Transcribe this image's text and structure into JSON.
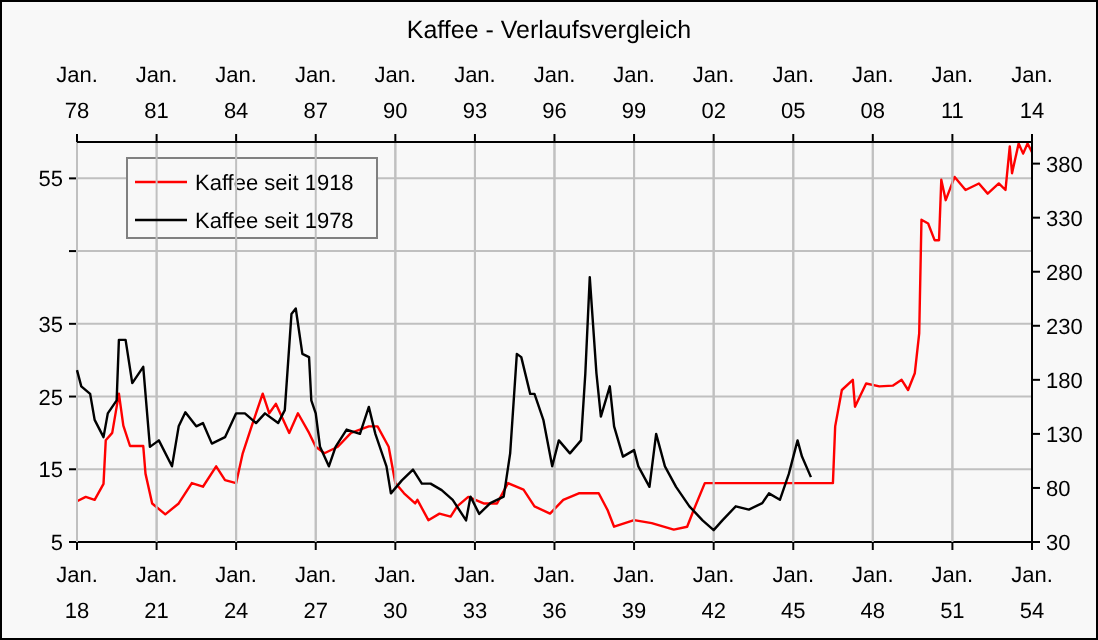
{
  "chart_data": [
    {
      "type": "line",
      "title": "Kaffee - Verlaufsvergleich",
      "xlim": [
        "1918-01",
        "1954-01"
      ],
      "xticks": [
        {
          "value": "1918-01",
          "label": "Jan. 18"
        },
        {
          "value": "1921-01",
          "label": "Jan. 21"
        },
        {
          "value": "1924-01",
          "label": "Jan. 24"
        },
        {
          "value": "1927-01",
          "label": "Jan. 27"
        },
        {
          "value": "1930-01",
          "label": "Jan. 30"
        },
        {
          "value": "1933-01",
          "label": "Jan. 33"
        },
        {
          "value": "1936-01",
          "label": "Jan. 36"
        },
        {
          "value": "1939-01",
          "label": "Jan. 39"
        },
        {
          "value": "1942-01",
          "label": "Jan. 42"
        },
        {
          "value": "1945-01",
          "label": "Jan. 45"
        },
        {
          "value": "1948-01",
          "label": "Jan. 48"
        },
        {
          "value": "1951-01",
          "label": "Jan. 51"
        },
        {
          "value": "1954-01",
          "label": "Jan. 54"
        }
      ],
      "ylim": [
        5,
        60
      ],
      "yticks": [
        5,
        15,
        25,
        35,
        {
          "value": 45,
          "label": null
        },
        55
      ],
      "grid": true,
      "legend": "top left",
      "series": [
        {
          "name": "Kaffee seit 1918",
          "color": "#ff0000",
          "x": [
            "1918-01",
            "1918-05",
            "1918-09",
            "1919-01",
            "1919-02",
            "1919-05",
            "1919-08",
            "1919-10",
            "1920-01",
            "1920-07",
            "1920-08",
            "1920-11",
            "1921-05",
            "1921-11",
            "1922-05",
            "1922-10",
            "1923-04",
            "1923-08",
            "1924-01",
            "1924-04",
            "1924-08",
            "1925-01",
            "1925-04",
            "1925-07",
            "1926-01",
            "1926-05",
            "1926-10",
            "1927-01",
            "1927-05",
            "1927-11",
            "1928-05",
            "1929-01",
            "1929-05",
            "1929-10",
            "1930-01",
            "1930-05",
            "1930-10",
            "1930-11",
            "1931-04",
            "1931-09",
            "1932-02",
            "1932-05",
            "1932-10",
            "1933-05",
            "1933-11",
            "1934-04",
            "1934-11",
            "1935-04",
            "1935-11",
            "1936-05",
            "1936-12",
            "1937-09",
            "1938-01",
            "1938-04",
            "1939-01",
            "1939-09",
            "1940-07",
            "1941-01",
            "1941-04",
            "1941-09",
            "1946-07",
            "1946-08",
            "1946-11",
            "1947-04",
            "1947-05",
            "1947-10",
            "1948-04",
            "1948-10",
            "1949-02",
            "1949-05",
            "1949-08",
            "1949-10",
            "1949-11",
            "1950-02",
            "1950-05",
            "1950-07",
            "1950-08",
            "1950-10",
            "1951-02",
            "1951-07",
            "1952-01",
            "1952-05",
            "1952-10",
            "1953-01",
            "1953-03",
            "1953-04",
            "1953-07",
            "1953-09",
            "1953-11",
            "1954-01"
          ],
          "values": [
            10.6,
            11.2,
            10.8,
            13,
            19,
            20,
            25.4,
            21,
            18.2,
            18.2,
            14.4,
            10.3,
            8.8,
            10.3,
            13.1,
            12.6,
            15.4,
            13.5,
            13.1,
            17.2,
            20.9,
            25.4,
            22.7,
            24,
            20,
            22.7,
            20,
            18.1,
            17.2,
            18.1,
            20,
            20.9,
            20.9,
            18.1,
            13.1,
            11.7,
            10.3,
            10.8,
            8,
            8.9,
            8.5,
            9.9,
            11.2,
            10.3,
            10.3,
            13.1,
            12.2,
            9.9,
            8.9,
            10.8,
            11.7,
            11.7,
            9.4,
            7.1,
            8,
            7.6,
            6.7,
            7.1,
            9.4,
            13.1,
            13.1,
            20.9,
            25.9,
            27.3,
            23.6,
            26.8,
            26.4,
            26.5,
            27.3,
            25.9,
            28.2,
            33.7,
            49.3,
            48.8,
            46.5,
            46.5,
            54.8,
            52,
            55.2,
            53.4,
            54.3,
            52.9,
            54.3,
            53.4,
            59.4,
            55.7,
            59.8,
            58.4,
            59.8,
            58.6
          ]
        }
      ]
    },
    {
      "type": "line",
      "xlim": [
        "1978-01",
        "2014-01"
      ],
      "xticks": [
        {
          "value": "1978-01",
          "label": "Jan. 78"
        },
        {
          "value": "1981-01",
          "label": "Jan. 81"
        },
        {
          "value": "1984-01",
          "label": "Jan. 84"
        },
        {
          "value": "1987-01",
          "label": "Jan. 87"
        },
        {
          "value": "1990-01",
          "label": "Jan. 90"
        },
        {
          "value": "1993-01",
          "label": "Jan. 93"
        },
        {
          "value": "1996-01",
          "label": "Jan. 96"
        },
        {
          "value": "1999-01",
          "label": "Jan. 99"
        },
        {
          "value": "2002-01",
          "label": "Jan. 02"
        },
        {
          "value": "2005-01",
          "label": "Jan. 05"
        },
        {
          "value": "2008-01",
          "label": "Jan. 08"
        },
        {
          "value": "2011-01",
          "label": "Jan. 11"
        },
        {
          "value": "2014-01",
          "label": "Jan. 14"
        }
      ],
      "ylim": [
        30,
        400
      ],
      "yticks": [
        30,
        80,
        130,
        180,
        230,
        280,
        330,
        380
      ],
      "grid": "x",
      "legend": "top left",
      "series": [
        {
          "name": "Kaffee seit 1978",
          "color": "#000000",
          "x": [
            "1978-01",
            "1978-03",
            "1978-07",
            "1978-09",
            "1979-01",
            "1979-03",
            "1979-07",
            "1979-08",
            "1979-11",
            "1980-02",
            "1980-07",
            "1980-10",
            "1981-02",
            "1981-08",
            "1981-11",
            "1982-02",
            "1982-07",
            "1982-10",
            "1983-02",
            "1983-08",
            "1984-01",
            "1984-05",
            "1984-10",
            "1985-02",
            "1985-08",
            "1985-11",
            "1986-02",
            "1986-04",
            "1986-07",
            "1986-10",
            "1986-11",
            "1987-01",
            "1987-03",
            "1987-07",
            "1987-10",
            "1988-03",
            "1988-09",
            "1989-01",
            "1989-04",
            "1989-09",
            "1989-11",
            "1990-04",
            "1990-09",
            "1991-01",
            "1991-05",
            "1991-10",
            "1992-03",
            "1992-09",
            "1992-11",
            "1993-03",
            "1993-08",
            "1994-02",
            "1994-05",
            "1994-08",
            "1994-10",
            "1995-02",
            "1995-04",
            "1995-08",
            "1995-12",
            "1996-03",
            "1996-08",
            "1997-01",
            "1997-03",
            "1997-05",
            "1997-08",
            "1997-10",
            "1998-02",
            "1998-04",
            "1998-08",
            "1999-01",
            "1999-03",
            "1999-08",
            "1999-11",
            "2000-03",
            "2000-08",
            "2001-02",
            "2001-08",
            "2002-01",
            "2002-05",
            "2002-11",
            "2003-05",
            "2003-11",
            "2004-02",
            "2004-07",
            "2004-11",
            "2005-03",
            "2005-05",
            "2005-09"
          ],
          "values": [
            189,
            174,
            167,
            143,
            127,
            149,
            161,
            217,
            217,
            177,
            192,
            118,
            124,
            100,
            137,
            150,
            137,
            140,
            121,
            127,
            149,
            149,
            140,
            149,
            140,
            152,
            241,
            246,
            204,
            201,
            161,
            149,
            118,
            100,
            118,
            134,
            130,
            155,
            130,
            100,
            75,
            87,
            97,
            84,
            84,
            78,
            69,
            50,
            72,
            56,
            66,
            72,
            112,
            204,
            201,
            167,
            167,
            143,
            100,
            124,
            112,
            124,
            186,
            275,
            186,
            146,
            174,
            137,
            109,
            115,
            100,
            81,
            130,
            100,
            81,
            63,
            50,
            41,
            50,
            63,
            60,
            66,
            75,
            69,
            93,
            124,
            109,
            90
          ]
        }
      ]
    }
  ]
}
